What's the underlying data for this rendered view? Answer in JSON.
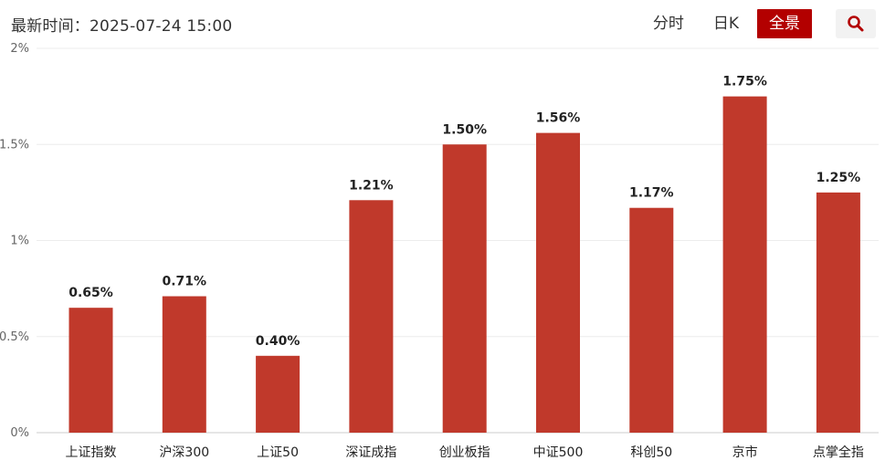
{
  "header": {
    "last_update": "最新时间：2025-07-24 15:00",
    "tabs": [
      {
        "label": "分时",
        "active": false
      },
      {
        "label": "日K",
        "active": false
      },
      {
        "label": "全景",
        "active": true
      }
    ],
    "search_icon": "search-icon",
    "accent_color": "#b30000"
  },
  "chart_data": {
    "type": "bar",
    "categories": [
      "上证指数",
      "沪深300",
      "上证50",
      "深证成指",
      "创业板指",
      "中证500",
      "科创50",
      "京市",
      "点掌全指"
    ],
    "values": [
      0.65,
      0.71,
      0.4,
      1.21,
      1.5,
      1.56,
      1.17,
      1.75,
      1.25
    ],
    "value_labels": [
      "0.65%",
      "0.71%",
      "0.40%",
      "1.21%",
      "1.50%",
      "1.56%",
      "1.17%",
      "1.75%",
      "1.25%"
    ],
    "y_ticks": [
      0,
      0.5,
      1,
      1.5,
      2
    ],
    "y_tick_labels": [
      "0%",
      "0.5%",
      "1%",
      "1.5%",
      "2%"
    ],
    "ylim": [
      0,
      2
    ],
    "bar_color": "#c0392b",
    "grid": true,
    "title": "",
    "xlabel": "",
    "ylabel": ""
  }
}
